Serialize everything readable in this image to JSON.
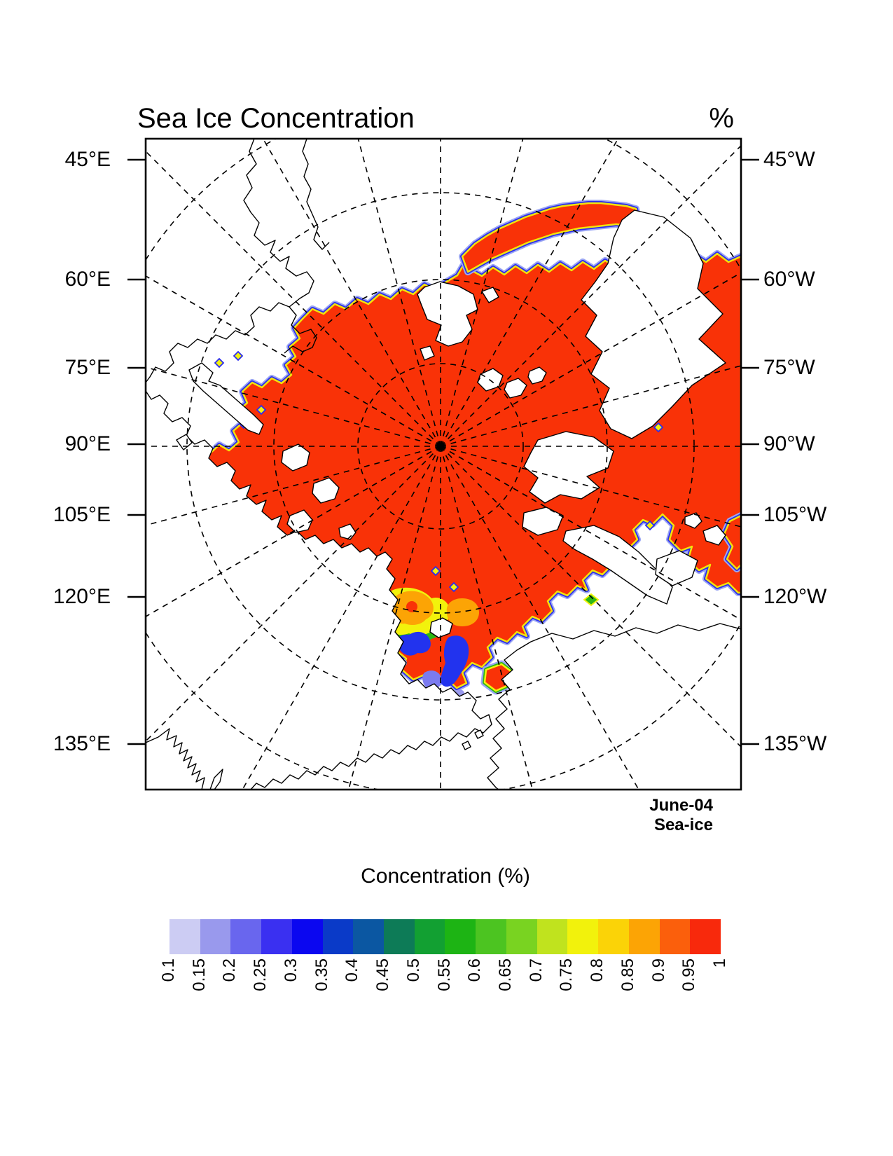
{
  "header": {
    "title": "Sea Ice Concentration",
    "units": "%"
  },
  "axes": {
    "left": [
      "45°E",
      "60°E",
      "75°E",
      "90°E",
      "105°E",
      "120°E",
      "135°E"
    ],
    "right": [
      "45°W",
      "60°W",
      "75°W",
      "90°W",
      "105°W",
      "120°W",
      "135°W"
    ]
  },
  "annotation": {
    "line1": "June-04",
    "line2": "Sea-ice"
  },
  "colorbar": {
    "title": "Concentration (%)",
    "tick_labels": [
      "0.1",
      "0.15",
      "0.2",
      "0.25",
      "0.3",
      "0.35",
      "0.4",
      "0.45",
      "0.5",
      "0.55",
      "0.6",
      "0.65",
      "0.7",
      "0.75",
      "0.8",
      "0.85",
      "0.9",
      "0.95",
      "1"
    ],
    "box_colors": [
      "#ccccf3",
      "#9999ed",
      "#6966ee",
      "#3a30f1",
      "#0b07f0",
      "#0a3ac8",
      "#0b57a2",
      "#0d7b57",
      "#12a032",
      "#1db414",
      "#4cc421",
      "#79d321",
      "#c0e31e",
      "#f2f20c",
      "#fbd307",
      "#fca405",
      "#fb5f0c",
      "#f8290c"
    ]
  },
  "chart_data": {
    "type": "heatmap",
    "title": "Sea Ice Concentration",
    "units": "%",
    "colorbar_title": "Concentration (%)",
    "levels": [
      0.1,
      0.15,
      0.2,
      0.25,
      0.3,
      0.35,
      0.4,
      0.45,
      0.5,
      0.55,
      0.6,
      0.65,
      0.7,
      0.75,
      0.8,
      0.85,
      0.9,
      0.95,
      1
    ],
    "level_colors": [
      "#ccccf3",
      "#9999ed",
      "#6966ee",
      "#3a30f1",
      "#0b07f0",
      "#0a3ac8",
      "#0b57a2",
      "#0d7b57",
      "#12a032",
      "#1db414",
      "#4cc421",
      "#79d321",
      "#c0e31e",
      "#f2f20c",
      "#fbd307",
      "#fca405",
      "#fb5f0c",
      "#f8290c"
    ],
    "projection": "north polar stereographic",
    "left_axis_ticks": [
      "45°E",
      "60°E",
      "75°E",
      "90°E",
      "105°E",
      "120°E",
      "135°E"
    ],
    "right_axis_ticks": [
      "45°W",
      "60°W",
      "75°W",
      "90°W",
      "105°W",
      "120°W",
      "135°W"
    ],
    "annotation": [
      "June-04",
      "Sea-ice"
    ],
    "legend_position": "bottom",
    "grid": "dashed graticule, meridians every 15 degrees and latitude circles",
    "summary": "Central Arctic pack at 0.95-1 concentration (red) with thin marginal ice zone fringes (blue/green/yellow); lower concentrations (0.3-0.85) in the Chukchi/Bering sector; scattered patches in Baffin Bay, Canadian Archipelago channels, Kamchatka and Okhotsk coasts."
  }
}
